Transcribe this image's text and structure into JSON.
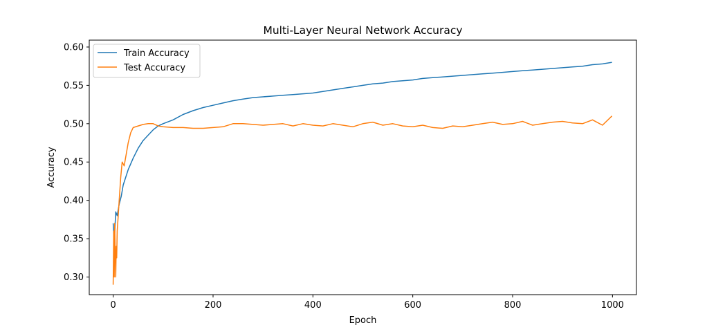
{
  "chart_data": {
    "type": "line",
    "title": "Multi-Layer Neural Network Accuracy",
    "xlabel": "Epoch",
    "ylabel": "Accuracy",
    "xlim": [
      -48,
      1048
    ],
    "ylim": [
      0.277,
      0.609
    ],
    "xticks": [
      0,
      200,
      400,
      600,
      800,
      1000
    ],
    "yticks": [
      0.3,
      0.35,
      0.4,
      0.45,
      0.5,
      0.55,
      0.6
    ],
    "xtick_labels": [
      "0",
      "200",
      "400",
      "600",
      "800",
      "1000"
    ],
    "ytick_labels": [
      "0.30",
      "0.35",
      "0.40",
      "0.45",
      "0.50",
      "0.55",
      "0.60"
    ],
    "grid": false,
    "legend_position": "upper-left",
    "series": [
      {
        "name": "Train Accuracy",
        "color": "#1f77b4",
        "x": [
          0,
          2,
          5,
          8,
          12,
          16,
          20,
          25,
          30,
          40,
          50,
          60,
          70,
          80,
          90,
          100,
          120,
          140,
          160,
          180,
          200,
          220,
          240,
          260,
          280,
          300,
          320,
          340,
          360,
          380,
          400,
          420,
          440,
          460,
          480,
          500,
          520,
          540,
          560,
          580,
          600,
          620,
          640,
          660,
          680,
          700,
          720,
          740,
          760,
          780,
          800,
          820,
          840,
          860,
          880,
          900,
          920,
          940,
          960,
          980,
          999
        ],
        "y": [
          0.37,
          0.345,
          0.385,
          0.38,
          0.395,
          0.405,
          0.42,
          0.43,
          0.44,
          0.455,
          0.468,
          0.478,
          0.485,
          0.492,
          0.497,
          0.5,
          0.505,
          0.512,
          0.517,
          0.521,
          0.524,
          0.527,
          0.53,
          0.532,
          0.534,
          0.535,
          0.536,
          0.537,
          0.538,
          0.539,
          0.54,
          0.542,
          0.544,
          0.546,
          0.548,
          0.55,
          0.552,
          0.553,
          0.555,
          0.556,
          0.557,
          0.559,
          0.56,
          0.561,
          0.562,
          0.563,
          0.564,
          0.565,
          0.566,
          0.567,
          0.568,
          0.569,
          0.57,
          0.571,
          0.572,
          0.573,
          0.574,
          0.575,
          0.577,
          0.578,
          0.58
        ]
      },
      {
        "name": "Test Accuracy",
        "color": "#ff7f0e",
        "x": [
          0,
          1,
          2,
          3,
          4,
          5,
          6,
          7,
          8,
          10,
          12,
          15,
          18,
          22,
          26,
          30,
          35,
          40,
          50,
          60,
          70,
          80,
          90,
          100,
          120,
          140,
          160,
          180,
          200,
          220,
          240,
          260,
          280,
          300,
          320,
          340,
          360,
          380,
          400,
          420,
          440,
          460,
          480,
          500,
          520,
          540,
          560,
          580,
          600,
          620,
          640,
          660,
          680,
          700,
          720,
          740,
          760,
          780,
          800,
          820,
          840,
          860,
          880,
          900,
          920,
          940,
          960,
          980,
          999
        ],
        "y": [
          0.29,
          0.36,
          0.3,
          0.37,
          0.33,
          0.3,
          0.34,
          0.325,
          0.36,
          0.38,
          0.4,
          0.43,
          0.45,
          0.445,
          0.46,
          0.475,
          0.488,
          0.495,
          0.497,
          0.499,
          0.5,
          0.5,
          0.497,
          0.496,
          0.495,
          0.495,
          0.494,
          0.494,
          0.495,
          0.496,
          0.5,
          0.5,
          0.499,
          0.498,
          0.499,
          0.5,
          0.497,
          0.5,
          0.498,
          0.497,
          0.5,
          0.498,
          0.496,
          0.5,
          0.502,
          0.498,
          0.5,
          0.497,
          0.496,
          0.498,
          0.495,
          0.494,
          0.497,
          0.496,
          0.498,
          0.5,
          0.502,
          0.499,
          0.5,
          0.503,
          0.498,
          0.5,
          0.502,
          0.503,
          0.501,
          0.5,
          0.505,
          0.498,
          0.51
        ]
      }
    ]
  }
}
